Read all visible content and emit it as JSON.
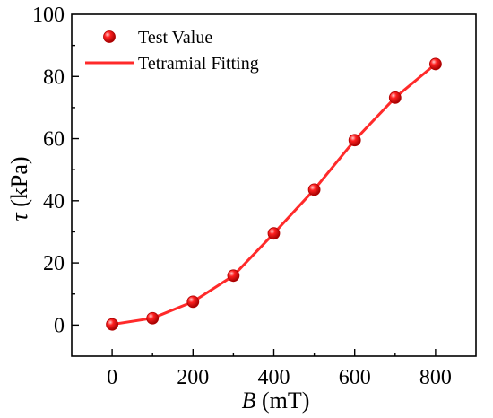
{
  "chart_data": {
    "type": "line",
    "title": "",
    "xlabel": {
      "symbol": "B",
      "unit": " (mT)"
    },
    "ylabel": {
      "symbol": "τ",
      "unit": " (kPa)"
    },
    "xlim": [
      -100,
      900
    ],
    "ylim": [
      -10,
      100
    ],
    "xticks": [
      0,
      200,
      400,
      600,
      800
    ],
    "yticks": [
      0,
      20,
      40,
      60,
      80,
      100
    ],
    "x_minor_step": 100,
    "y_minor_step": 10,
    "grid": false,
    "legend_position": "top-left",
    "series": [
      {
        "name": "Test Value",
        "kind": "scatter",
        "color": "#ff0000",
        "x": [
          0,
          100,
          200,
          300,
          400,
          500,
          600,
          700,
          800
        ],
        "y": [
          0.2,
          2.2,
          7.5,
          15.9,
          29.5,
          43.6,
          59.5,
          73.2,
          84.0
        ]
      },
      {
        "name": "Tetramial Fitting",
        "kind": "line",
        "color": "#ff2a2a",
        "x": [
          0,
          100,
          200,
          300,
          400,
          500,
          600,
          700,
          800
        ],
        "y": [
          0.2,
          2.2,
          7.5,
          15.9,
          29.5,
          43.6,
          59.5,
          73.2,
          84.0
        ]
      }
    ]
  }
}
